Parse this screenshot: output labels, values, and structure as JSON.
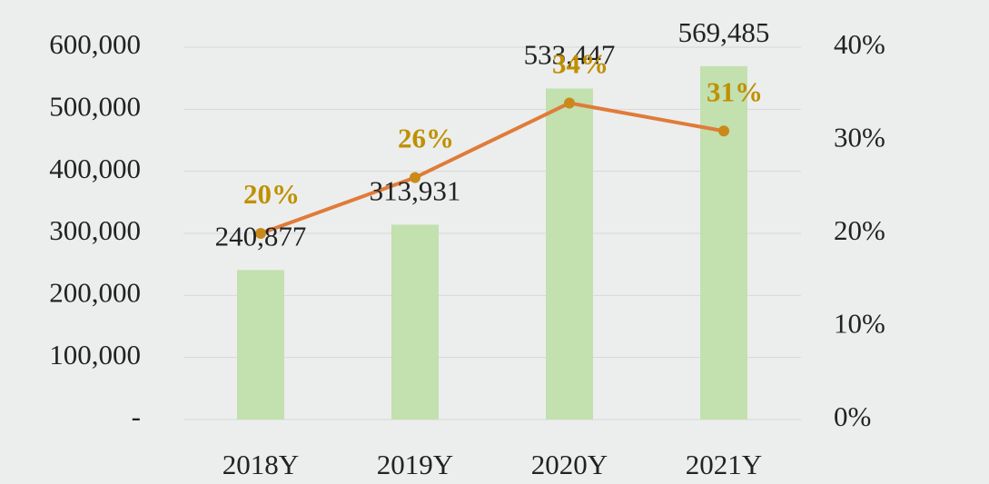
{
  "chart_data": {
    "type": "bar",
    "categories": [
      "2018Y",
      "2019Y",
      "2020Y",
      "2021Y"
    ],
    "series": [
      {
        "type": "bar",
        "color": "#c3e0af",
        "values": [
          240877,
          313931,
          533447,
          569485
        ],
        "value_labels": [
          "240,877",
          "313,931",
          "533,447",
          "569,485"
        ]
      },
      {
        "type": "line",
        "axis": "y2",
        "color": "#e07b39",
        "marker_color": "#c98a1a",
        "label_color": "#c09000",
        "values": [
          20,
          26,
          34,
          31
        ],
        "value_labels": [
          "20%",
          "26%",
          "34%",
          "31%"
        ]
      }
    ],
    "ylim": [
      0,
      600000
    ],
    "yticks": [
      {
        "value": 0,
        "label": "-"
      },
      {
        "value": 100000,
        "label": "100,000"
      },
      {
        "value": 200000,
        "label": "200,000"
      },
      {
        "value": 300000,
        "label": "300,000"
      },
      {
        "value": 400000,
        "label": "400,000"
      },
      {
        "value": 500000,
        "label": "500,000"
      },
      {
        "value": 600000,
        "label": "600,000"
      }
    ],
    "y2lim": [
      0,
      40
    ],
    "y2ticks": [
      {
        "value": 0,
        "label": "0%"
      },
      {
        "value": 10,
        "label": "10%"
      },
      {
        "value": 20,
        "label": "20%"
      },
      {
        "value": 30,
        "label": "30%"
      },
      {
        "value": 40,
        "label": "40%"
      }
    ],
    "grid": true
  }
}
